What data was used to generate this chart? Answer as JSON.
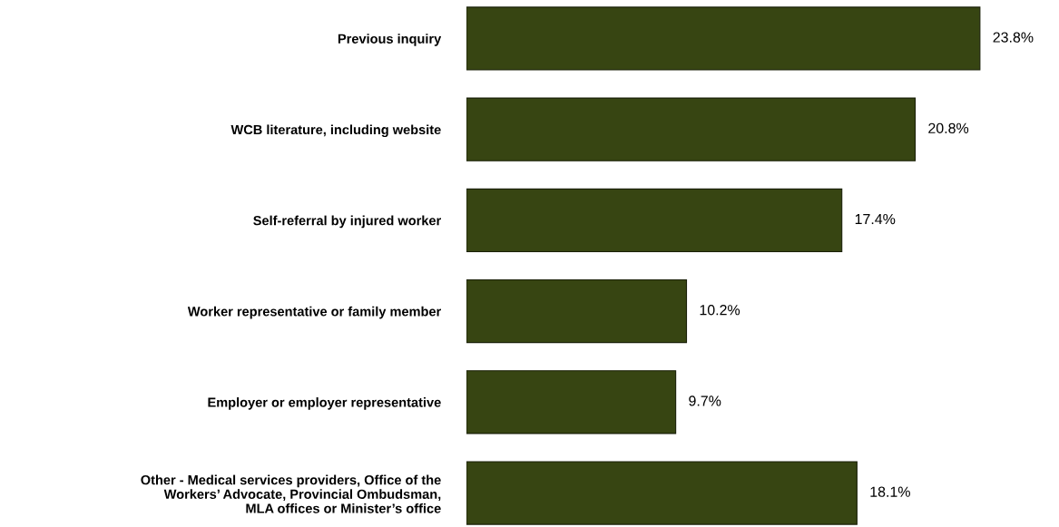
{
  "chart_data": {
    "type": "bar",
    "orientation": "horizontal",
    "categories": [
      "Previous inquiry",
      "WCB literature, including website",
      "Self-referral by injured worker",
      "Worker representative or family member",
      "Employer or employer representative",
      "Other - Medical services providers, Office of the\nWorkers’ Advocate, Provincial Ombudsman,\nMLA offices or Minister’s office"
    ],
    "values": [
      23.8,
      20.8,
      17.4,
      10.2,
      9.7,
      18.1
    ],
    "value_labels": [
      "23.8%",
      "20.8%",
      "17.4%",
      "10.2%",
      "9.7%",
      "18.1%"
    ],
    "color": "#374512",
    "grid": false,
    "legend": false
  }
}
